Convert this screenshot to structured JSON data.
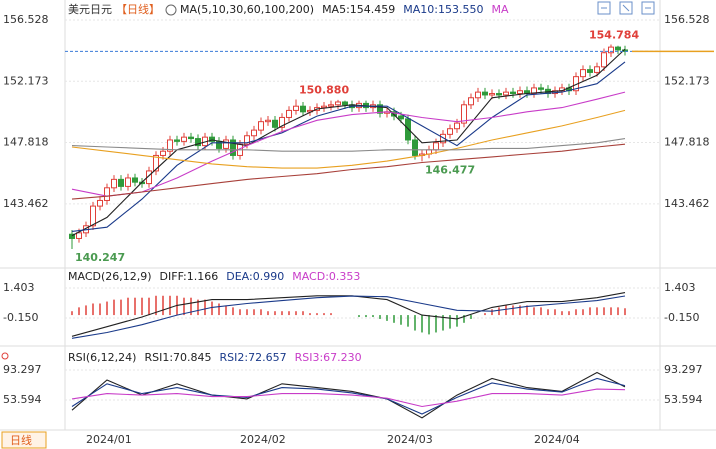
{
  "chart_data": [
    {
      "type": "candlestick",
      "title": "美元日元",
      "subtitle": "【日线】",
      "period_button": "日线",
      "legend": [
        {
          "text": "MA(5,10,30,60,100,200)",
          "color": "#222222"
        },
        {
          "text": "MA5:154.459",
          "color": "#222222"
        },
        {
          "text": "MA10:153.550",
          "color": "#1a3a8a"
        },
        {
          "text": "MA",
          "color": "#c83cc8"
        }
      ],
      "categories": [
        null,
        null,
        "2024/01",
        null,
        null,
        null,
        null,
        null,
        null,
        null,
        null,
        null,
        null,
        null,
        null,
        null,
        null,
        null,
        null,
        null,
        null,
        null,
        null,
        null,
        "2024/02",
        null,
        null,
        null,
        null,
        null,
        null,
        null,
        null,
        null,
        null,
        null,
        null,
        null,
        null,
        null,
        null,
        null,
        null,
        null,
        null,
        "2024/03",
        null,
        null,
        null,
        null,
        null,
        null,
        null,
        null,
        null,
        null,
        null,
        null,
        null,
        null,
        null,
        null,
        null,
        null,
        null,
        null,
        "2024/04",
        null,
        null,
        null,
        null,
        null,
        null,
        null,
        null,
        null,
        null,
        null,
        null,
        null
      ],
      "xlim": [
        -1,
        84
      ],
      "open": [
        141.3,
        141.0,
        141.4,
        141.9,
        143.3,
        143.7,
        144.6,
        145.2,
        144.7,
        145.3,
        145.0,
        144.9,
        145.8,
        146.9,
        147.2,
        148.0,
        147.9,
        148.2,
        148.1,
        147.6,
        148.2,
        147.9,
        147.4,
        148.0,
        146.9,
        147.7,
        148.3,
        148.7,
        149.3,
        149.4,
        148.9,
        149.6,
        150.1,
        150.4,
        150.0,
        150.1,
        150.3,
        150.4,
        150.5,
        150.7,
        150.5,
        150.3,
        150.6,
        150.3,
        150.5,
        149.9,
        150.0,
        149.7,
        149.5,
        148.0,
        146.9,
        147.0,
        147.3,
        147.8,
        148.4,
        148.8,
        149.2,
        150.5,
        151.0,
        151.4,
        151.2,
        151.3,
        151.2,
        151.4,
        151.3,
        151.5,
        151.3,
        151.7,
        151.6,
        151.3,
        151.5,
        151.7,
        151.5,
        152.5,
        153.0,
        152.8,
        153.2,
        154.2,
        154.6,
        154.4
      ],
      "high": [
        141.6,
        141.7,
        142.2,
        143.6,
        144.0,
        144.9,
        145.5,
        145.5,
        145.6,
        145.6,
        145.3,
        146.1,
        147.2,
        147.5,
        148.3,
        148.3,
        148.5,
        148.5,
        148.4,
        148.5,
        148.5,
        148.2,
        148.3,
        148.3,
        148.0,
        148.6,
        149.0,
        149.6,
        149.7,
        149.7,
        149.9,
        150.4,
        150.88,
        150.7,
        150.4,
        150.6,
        150.7,
        150.8,
        150.85,
        150.8,
        150.8,
        150.8,
        150.8,
        150.8,
        150.8,
        150.3,
        150.3,
        150.0,
        149.8,
        148.3,
        147.3,
        147.6,
        148.1,
        148.7,
        149.1,
        149.5,
        150.8,
        151.3,
        151.7,
        151.7,
        151.6,
        151.6,
        151.7,
        151.7,
        151.8,
        151.8,
        152.0,
        152.0,
        151.9,
        151.8,
        152.0,
        152.0,
        152.8,
        153.3,
        153.3,
        153.5,
        154.5,
        154.784,
        154.7,
        154.7
      ],
      "low": [
        140.247,
        140.7,
        141.1,
        141.6,
        143.0,
        143.4,
        144.3,
        144.4,
        144.4,
        144.7,
        144.6,
        144.6,
        145.5,
        146.6,
        146.9,
        147.6,
        147.6,
        147.8,
        147.3,
        147.3,
        147.6,
        147.1,
        147.1,
        146.6,
        146.6,
        147.4,
        148.0,
        148.4,
        149.0,
        148.6,
        148.6,
        149.3,
        149.8,
        149.7,
        149.7,
        149.8,
        150.0,
        150.1,
        150.2,
        150.2,
        150.0,
        150.0,
        150.0,
        150.0,
        149.6,
        149.6,
        149.4,
        149.2,
        147.7,
        146.6,
        146.477,
        146.7,
        147.0,
        147.5,
        148.1,
        148.5,
        148.9,
        150.2,
        150.7,
        150.9,
        150.9,
        150.9,
        150.9,
        151.0,
        151.0,
        151.0,
        151.0,
        151.3,
        151.0,
        151.0,
        151.2,
        151.2,
        151.2,
        152.2,
        152.5,
        152.5,
        152.9,
        153.9,
        154.1,
        154.0
      ],
      "close": [
        141.0,
        141.4,
        141.9,
        143.3,
        143.7,
        144.6,
        145.2,
        144.7,
        145.3,
        145.0,
        144.9,
        145.8,
        146.9,
        147.2,
        148.0,
        147.9,
        148.2,
        148.1,
        147.6,
        148.2,
        147.9,
        147.4,
        148.0,
        146.9,
        147.7,
        148.3,
        148.7,
        149.3,
        149.4,
        148.9,
        149.6,
        150.1,
        150.4,
        150.0,
        150.1,
        150.3,
        150.4,
        150.5,
        150.7,
        150.5,
        150.3,
        150.6,
        150.3,
        150.5,
        149.9,
        150.0,
        149.7,
        149.5,
        148.0,
        146.9,
        147.0,
        147.3,
        147.8,
        148.4,
        148.8,
        149.2,
        150.5,
        151.0,
        151.4,
        151.2,
        151.3,
        151.2,
        151.4,
        151.3,
        151.5,
        151.3,
        151.7,
        151.6,
        151.3,
        151.5,
        151.7,
        151.5,
        152.5,
        153.0,
        152.8,
        153.2,
        154.2,
        154.6,
        154.4,
        154.3
      ],
      "up_color": "#e0403a",
      "down_color": "#2f9a3a",
      "series": [
        {
          "color": "#222222",
          "x": [
            0,
            5,
            10,
            15,
            20,
            25,
            30,
            35,
            40,
            45,
            50,
            55,
            60,
            65,
            70,
            75,
            79
          ],
          "values": [
            141.2,
            142.5,
            145.0,
            147.3,
            148.0,
            147.6,
            149.0,
            150.2,
            150.5,
            150.3,
            147.8,
            148.0,
            151.0,
            151.3,
            151.5,
            152.6,
            154.459
          ]
        },
        {
          "color": "#1a3a8a",
          "x": [
            0,
            5,
            10,
            15,
            20,
            25,
            30,
            35,
            40,
            45,
            50,
            55,
            60,
            65,
            70,
            75,
            79
          ],
          "values": [
            141.5,
            141.8,
            143.8,
            146.2,
            147.8,
            147.8,
            148.5,
            149.7,
            150.4,
            150.4,
            149.0,
            147.6,
            149.6,
            151.2,
            151.4,
            152.0,
            153.55
          ]
        },
        {
          "color": "#c83cc8",
          "x": [
            0,
            5,
            10,
            15,
            20,
            25,
            30,
            35,
            40,
            45,
            50,
            55,
            60,
            65,
            70,
            75,
            79
          ],
          "values": [
            144.5,
            144.0,
            144.3,
            145.3,
            146.5,
            147.6,
            148.6,
            149.4,
            149.8,
            150.0,
            149.6,
            149.3,
            149.6,
            150.0,
            150.3,
            150.9,
            151.4
          ]
        },
        {
          "color": "#e8a020",
          "x": [
            0,
            5,
            10,
            15,
            20,
            25,
            30,
            35,
            40,
            45,
            50,
            55,
            60,
            65,
            70,
            75,
            79
          ],
          "values": [
            147.5,
            147.2,
            146.9,
            146.6,
            146.3,
            146.1,
            146.0,
            146.0,
            146.2,
            146.5,
            146.9,
            147.4,
            148.0,
            148.5,
            149.0,
            149.6,
            150.1
          ]
        },
        {
          "color": "#8a8a8a",
          "x": [
            0,
            5,
            10,
            15,
            20,
            25,
            30,
            35,
            40,
            45,
            50,
            55,
            60,
            65,
            70,
            75,
            79
          ],
          "values": [
            147.6,
            147.5,
            147.4,
            147.3,
            147.3,
            147.3,
            147.2,
            147.2,
            147.2,
            147.3,
            147.3,
            147.3,
            147.4,
            147.4,
            147.6,
            147.8,
            148.1
          ]
        },
        {
          "color": "#a8403a",
          "x": [
            0,
            5,
            10,
            15,
            20,
            25,
            30,
            35,
            40,
            45,
            50,
            55,
            60,
            65,
            70,
            75,
            79
          ],
          "values": [
            143.8,
            144.0,
            144.3,
            144.6,
            144.9,
            145.2,
            145.4,
            145.6,
            145.9,
            146.1,
            146.4,
            146.6,
            146.8,
            147.0,
            147.2,
            147.5,
            147.7
          ]
        }
      ],
      "annotations": [
        154.784,
        {
          "value": 150.88,
          "label": "150.880"
        },
        146.477,
        140.247
      ],
      "current_price": 154.3,
      "current_price_color": "#3b7bd8",
      "marker_color": "#e8a020",
      "ylim": [
        138.9,
        157.38
      ],
      "yticks": [
        156.528,
        152.173,
        147.818,
        143.462
      ],
      "grid": true
    },
    {
      "type": "combo",
      "legend": [
        {
          "text": "MACD(26,12,9)",
          "color": "#222222"
        },
        {
          "text": "DIFF:1.166",
          "color": "#222222"
        },
        {
          "text": "DEA:0.990",
          "color": "#1a3a8a"
        },
        {
          "text": "MACD:0.353",
          "color": "#c83cc8"
        }
      ],
      "bars": {
        "up_color": "#e0403a",
        "down_color": "#2f9a3a",
        "values": [
          0.2,
          0.4,
          0.5,
          0.6,
          0.6,
          0.7,
          0.8,
          0.8,
          0.9,
          0.9,
          0.9,
          0.9,
          1.0,
          1.0,
          1.0,
          1.0,
          0.9,
          0.9,
          0.8,
          0.8,
          0.7,
          0.6,
          0.5,
          0.4,
          0.3,
          0.3,
          0.3,
          0.3,
          0.2,
          0.2,
          0.2,
          0.2,
          0.2,
          0.2,
          0.1,
          0.1,
          0.1,
          0.1,
          0.0,
          0.0,
          0.0,
          -0.1,
          -0.1,
          -0.1,
          -0.2,
          -0.3,
          -0.4,
          -0.5,
          -0.6,
          -0.8,
          -0.9,
          -1.0,
          -0.9,
          -0.8,
          -0.7,
          -0.6,
          -0.4,
          -0.2,
          0.0,
          0.1,
          0.3,
          0.4,
          0.5,
          0.5,
          0.5,
          0.5,
          0.4,
          0.4,
          0.3,
          0.3,
          0.2,
          0.2,
          0.3,
          0.3,
          0.4,
          0.4,
          0.4,
          0.4,
          0.4,
          0.353
        ]
      },
      "series": [
        {
          "color": "#222222",
          "x": [
            0,
            5,
            10,
            15,
            20,
            25,
            30,
            35,
            40,
            45,
            50,
            55,
            60,
            65,
            70,
            75,
            79
          ],
          "values": [
            -1.1,
            -0.6,
            -0.1,
            0.5,
            0.8,
            0.8,
            0.9,
            1.0,
            1.0,
            0.8,
            0.0,
            -0.2,
            0.4,
            0.7,
            0.7,
            0.9,
            1.166
          ]
        },
        {
          "color": "#1a3a8a",
          "x": [
            0,
            5,
            10,
            15,
            20,
            25,
            30,
            35,
            40,
            45,
            50,
            55,
            60,
            65,
            70,
            75,
            79
          ],
          "values": [
            -1.2,
            -0.9,
            -0.5,
            0.0,
            0.4,
            0.6,
            0.75,
            0.9,
            0.98,
            0.95,
            0.6,
            0.25,
            0.2,
            0.45,
            0.6,
            0.75,
            0.99
          ]
        }
      ],
      "ylim": [
        -1.29,
        2.23
      ],
      "yticks": [
        1.403,
        {
          "value": -0.15,
          "label": "-0.150"
        }
      ],
      "grid": true
    },
    {
      "type": "line",
      "legend": [
        {
          "text": "RSI(6,12,24)",
          "color": "#222222"
        },
        {
          "text": "RSI1:70.845",
          "color": "#222222"
        },
        {
          "text": "RSI2:72.657",
          "color": "#1a3a8a"
        },
        {
          "text": "RSI3:67.230",
          "color": "#c83cc8"
        }
      ],
      "series": [
        {
          "color": "#222222",
          "x": [
            0,
            5,
            10,
            15,
            20,
            25,
            30,
            35,
            40,
            45,
            50,
            55,
            60,
            65,
            70,
            75,
            79
          ],
          "values": [
            40,
            80,
            60,
            75,
            60,
            55,
            75,
            70,
            65,
            55,
            30,
            60,
            82,
            70,
            65,
            90,
            70.845
          ]
        },
        {
          "color": "#1a3a8a",
          "x": [
            0,
            5,
            10,
            15,
            20,
            25,
            30,
            35,
            40,
            45,
            50,
            55,
            60,
            65,
            70,
            75,
            79
          ],
          "values": [
            45,
            75,
            62,
            70,
            60,
            57,
            70,
            68,
            63,
            55,
            35,
            57,
            76,
            68,
            64,
            82,
            72.657
          ]
        },
        {
          "color": "#c83cc8",
          "x": [
            0,
            5,
            10,
            15,
            20,
            25,
            30,
            35,
            40,
            45,
            50,
            55,
            60,
            65,
            70,
            75,
            79
          ],
          "values": [
            55,
            62,
            60,
            62,
            58,
            58,
            62,
            62,
            60,
            56,
            45,
            52,
            62,
            62,
            60,
            68,
            67.23
          ]
        }
      ],
      "ylim": [
        16.5,
        117.1
      ],
      "yticks": [
        93.297,
        53.594
      ],
      "grid": true
    }
  ]
}
